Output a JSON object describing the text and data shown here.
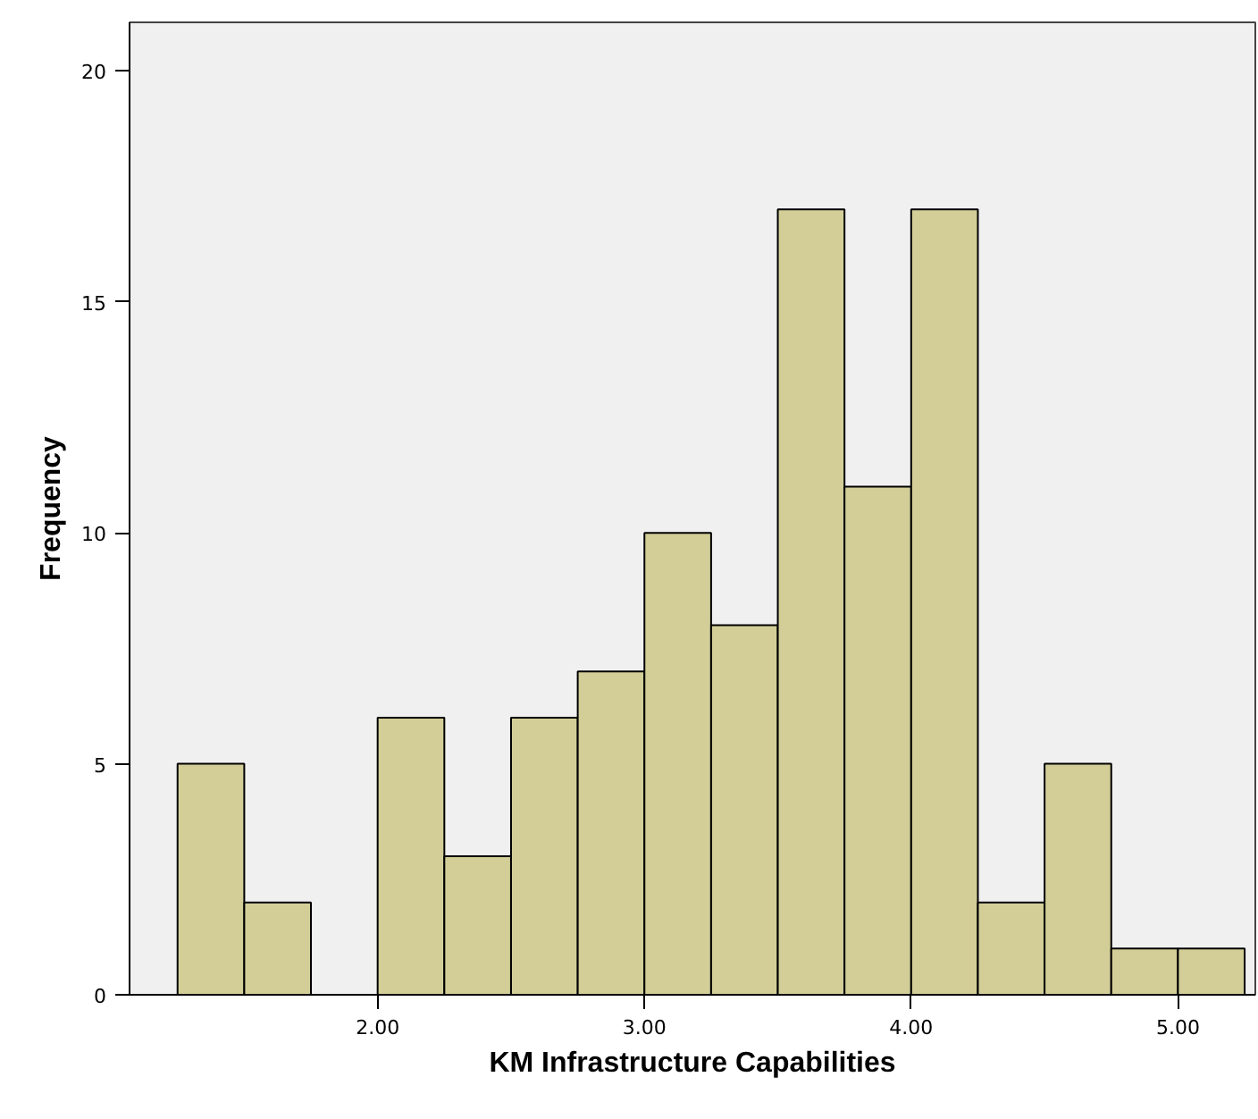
{
  "chart_data": {
    "type": "histogram",
    "xlabel": "KM Infrastructure Capabilities",
    "ylabel": "Frequency",
    "bins": [
      1.25,
      1.5,
      1.75,
      2.0,
      2.25,
      2.5,
      2.75,
      3.0,
      3.25,
      3.5,
      3.75,
      4.0,
      4.25,
      4.5,
      4.75,
      5.0,
      5.25
    ],
    "values": [
      5,
      2,
      0,
      6,
      3,
      6,
      7,
      10,
      8,
      17,
      11,
      17,
      2,
      5,
      1,
      1
    ],
    "color": "#d3ce97",
    "xlim": [
      1.07,
      5.29
    ],
    "ylim": [
      0,
      21.05
    ],
    "xticks": [
      {
        "value": 2,
        "label": "2.00"
      },
      {
        "value": 3,
        "label": "3.00"
      },
      {
        "value": 4,
        "label": "4.00"
      },
      {
        "value": 5,
        "label": "5.00"
      }
    ],
    "yticks": [
      0,
      5,
      10,
      15,
      20
    ]
  }
}
